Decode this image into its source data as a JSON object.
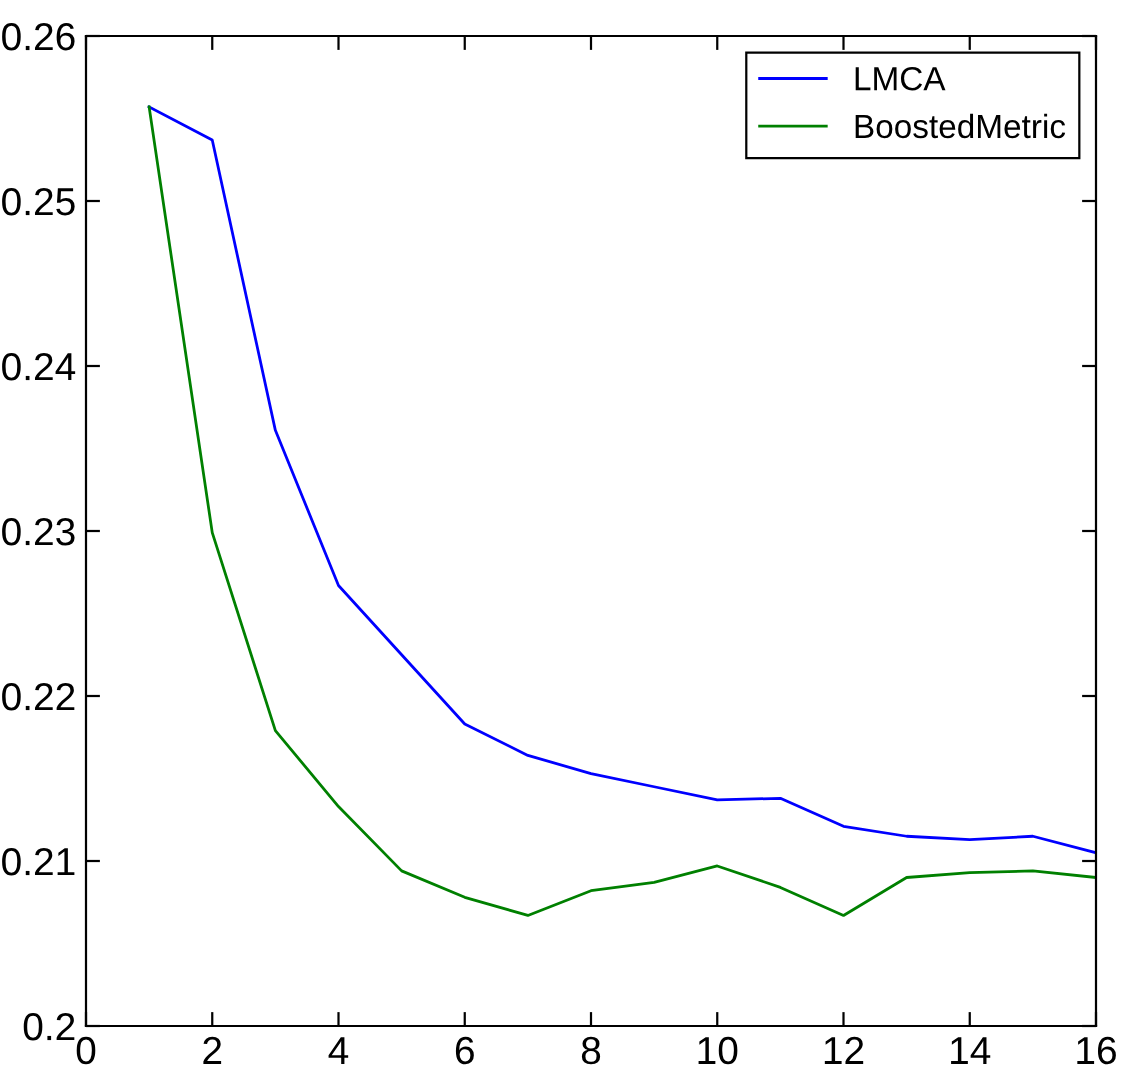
{
  "chart_data": {
    "type": "line",
    "x": [
      1,
      2,
      3,
      4,
      5,
      6,
      7,
      8,
      9,
      10,
      11,
      12,
      13,
      14,
      15,
      16
    ],
    "series": [
      {
        "name": "LMCA",
        "color": "#0000ff",
        "values": [
          0.2557,
          0.2537,
          0.2361,
          0.2267,
          0.2225,
          0.2183,
          0.2164,
          0.2153,
          0.2145,
          0.2137,
          0.2138,
          0.2121,
          0.2115,
          0.2113,
          0.2115,
          0.2105
        ]
      },
      {
        "name": "BoostedMetric",
        "color": "#008000",
        "values": [
          0.2557,
          0.2299,
          0.2179,
          0.2133,
          0.2094,
          0.2078,
          0.2067,
          0.2082,
          0.2087,
          0.2097,
          0.2084,
          0.2067,
          0.209,
          0.2093,
          0.2094,
          0.209
        ]
      }
    ],
    "xlim": [
      0,
      16
    ],
    "xticks": [
      0,
      2,
      4,
      6,
      8,
      10,
      12,
      14,
      16
    ],
    "ylim": [
      0.2,
      0.26
    ],
    "yticks": [
      {
        "value": 0.2,
        "label": "0.2"
      },
      {
        "value": 0.21,
        "label": "0.21"
      },
      {
        "value": 0.22,
        "label": "0.22"
      },
      {
        "value": 0.23,
        "label": "0.23"
      },
      {
        "value": 0.24,
        "label": "0.24"
      },
      {
        "value": 0.25,
        "label": "0.25"
      },
      {
        "value": 0.26,
        "label": "0.26"
      }
    ],
    "legend": "top right",
    "grid": false
  }
}
